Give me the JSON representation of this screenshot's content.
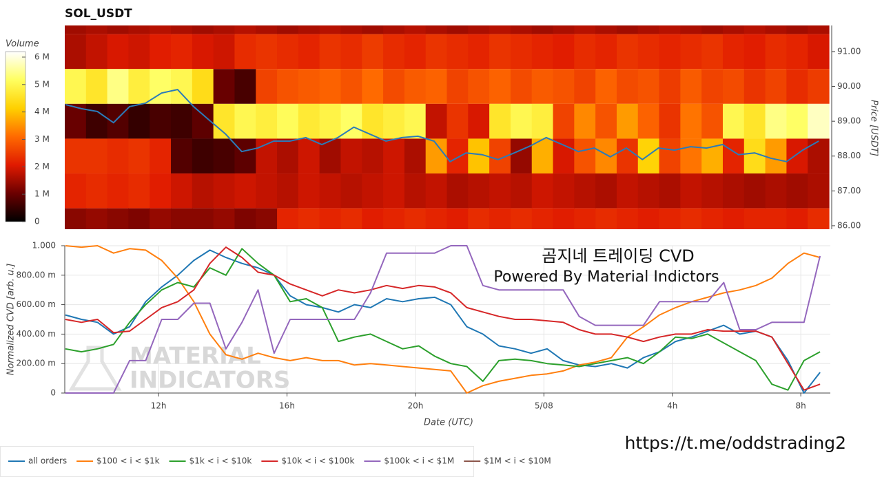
{
  "chart_data": [
    {
      "type": "heatmap",
      "title": "SOL_USDT",
      "xlim": [
        9.08,
        32.92
      ],
      "levels": [
        92,
        91,
        90,
        89,
        88,
        87,
        86
      ],
      "z": [
        [
          1.5,
          1.6,
          1.5,
          1.6,
          1.7,
          1.6,
          1.5,
          1.6,
          1.7,
          1.6,
          1.5,
          1.6,
          1.7,
          1.6,
          1.5,
          1.6,
          1.7,
          1.6,
          1.5,
          1.6,
          1.7,
          1.6,
          1.5,
          1.6,
          1.7,
          1.6,
          1.5,
          1.6,
          1.7,
          1.6,
          1.5,
          1.6,
          1.7,
          1.6,
          1.5,
          1.6
        ],
        [
          1.6,
          1.8,
          2.0,
          1.9,
          2.1,
          2.2,
          2.0,
          1.9,
          2.3,
          2.4,
          2.3,
          2.2,
          2.4,
          2.3,
          2.5,
          2.3,
          2.2,
          2.4,
          2.3,
          2.2,
          2.4,
          2.3,
          2.2,
          2.1,
          2.3,
          2.2,
          2.4,
          2.3,
          2.2,
          2.3,
          2.4,
          2.2,
          2.1,
          2.3,
          2.2,
          2.0
        ],
        [
          5.0,
          4.6,
          5.4,
          4.8,
          5.2,
          5.0,
          4.4,
          1.0,
          0.7,
          2.6,
          2.8,
          2.9,
          3.0,
          2.8,
          3.1,
          2.7,
          2.9,
          3.0,
          2.6,
          2.8,
          3.0,
          2.7,
          2.9,
          2.8,
          2.6,
          3.0,
          2.7,
          2.8,
          2.5,
          2.9,
          2.6,
          2.7,
          2.4,
          2.6,
          2.3,
          2.5
        ],
        [
          1.0,
          0.6,
          0.8,
          0.5,
          0.7,
          0.6,
          0.9,
          4.6,
          5.0,
          4.8,
          5.1,
          4.7,
          4.9,
          5.2,
          4.6,
          4.8,
          5.0,
          1.8,
          2.4,
          2.0,
          4.6,
          5.0,
          4.8,
          2.6,
          3.4,
          2.8,
          3.6,
          3.0,
          2.4,
          3.2,
          2.8,
          5.0,
          4.6,
          5.4,
          5.2,
          5.8
        ],
        [
          2.4,
          2.4,
          2.3,
          2.4,
          2.2,
          0.8,
          0.6,
          0.7,
          0.9,
          1.8,
          1.6,
          1.9,
          1.5,
          1.8,
          1.7,
          1.9,
          1.6,
          3.6,
          2.2,
          4.0,
          2.6,
          1.4,
          3.8,
          2.0,
          2.8,
          3.4,
          2.4,
          4.2,
          2.6,
          3.2,
          3.8,
          2.2,
          4.4,
          3.6,
          2.0,
          1.6
        ],
        [
          2.2,
          2.3,
          2.2,
          2.3,
          2.1,
          1.9,
          1.7,
          1.8,
          1.9,
          1.8,
          1.7,
          1.9,
          1.8,
          1.7,
          1.8,
          1.9,
          1.7,
          1.8,
          1.6,
          1.7,
          1.8,
          1.7,
          1.9,
          1.8,
          1.7,
          1.6,
          1.8,
          1.7,
          1.6,
          1.8,
          1.7,
          1.6,
          1.5,
          1.6,
          1.5,
          1.6
        ],
        [
          1.3,
          1.4,
          1.3,
          1.2,
          1.4,
          1.3,
          1.3,
          1.4,
          1.2,
          1.3,
          2.2,
          2.3,
          2.2,
          2.3,
          2.1,
          2.2,
          2.3,
          2.2,
          2.1,
          2.3,
          2.2,
          2.3,
          2.2,
          2.1,
          2.2,
          2.3,
          2.2,
          2.1,
          2.2,
          2.3,
          2.2,
          2.1,
          2.2,
          2.2,
          2.1,
          2.3
        ]
      ],
      "colorscale": [
        "#000000",
        "#6b0000",
        "#e01a00",
        "#ff6a00",
        "#ffd000",
        "#ffff60",
        "#ffffff"
      ],
      "colorbar": {
        "title": "Volume",
        "lim": [
          0,
          6.2
        ],
        "ticks": [
          0,
          {
            "value": 1,
            "label": "1 M"
          },
          {
            "value": 2,
            "label": "2 M"
          },
          {
            "value": 3,
            "label": "3 M"
          },
          {
            "value": 4,
            "label": "4 M"
          },
          {
            "value": 5,
            "label": "5 M"
          },
          {
            "value": 6,
            "label": "6 M"
          }
        ]
      },
      "ylabel": "Price [USDT]",
      "ylim": [
        85.9,
        91.75
      ],
      "yticks": [
        {
          "value": 86,
          "label": "86.00"
        },
        {
          "value": 87,
          "label": "87.00"
        },
        {
          "value": 88,
          "label": "88.00"
        },
        {
          "value": 89,
          "label": "89.00"
        },
        {
          "value": 90,
          "label": "90.00"
        },
        {
          "value": 91,
          "label": "91.00"
        }
      ],
      "x": [
        9.1,
        9.6,
        10.1,
        10.6,
        11.1,
        11.6,
        12.1,
        12.6,
        13.1,
        13.6,
        14.1,
        14.6,
        15.1,
        15.6,
        16.1,
        16.6,
        17.1,
        17.6,
        18.1,
        18.6,
        19.1,
        19.6,
        20.1,
        20.6,
        21.1,
        21.6,
        22.1,
        22.6,
        23.1,
        23.6,
        24.1,
        24.6,
        25.1,
        25.6,
        26.1,
        26.6,
        27.1,
        27.6,
        28.1,
        28.6,
        29.1,
        29.6,
        30.1,
        30.6,
        31.1,
        31.6,
        32.1,
        32.6
      ],
      "series": [
        {
          "color": "#2b7bb9",
          "values": [
            89.48,
            89.36,
            89.28,
            88.96,
            89.42,
            89.52,
            89.81,
            89.91,
            89.42,
            89.02,
            88.63,
            88.13,
            88.23,
            88.43,
            88.43,
            88.53,
            88.33,
            88.53,
            88.83,
            88.63,
            88.43,
            88.53,
            88.57,
            88.43,
            87.84,
            88.09,
            88.04,
            87.9,
            88.09,
            88.29,
            88.53,
            88.33,
            88.13,
            88.23,
            87.98,
            88.23,
            87.9,
            88.23,
            88.17,
            88.27,
            88.23,
            88.33,
            88.04,
            88.09,
            87.94,
            87.84,
            88.17,
            88.43
          ]
        }
      ]
    },
    {
      "type": "line",
      "xlabel": "Date (UTC)",
      "ylabel": "Normalized CVD [arb. u.]",
      "xlim": [
        9.08,
        32.92
      ],
      "xticks": [
        {
          "value": 12,
          "label": "12h"
        },
        {
          "value": 16,
          "label": "16h"
        },
        {
          "value": 20,
          "label": "20h"
        },
        {
          "value": 24,
          "label": "5/08"
        },
        {
          "value": 28,
          "label": "4h"
        },
        {
          "value": 32,
          "label": "8h"
        }
      ],
      "ylim": [
        0,
        1
      ],
      "yticks": [
        0,
        {
          "value": 0.2,
          "label": "200.00 m"
        },
        {
          "value": 0.4,
          "label": "400.00 m"
        },
        {
          "value": 0.6,
          "label": "600.00 m"
        },
        {
          "value": 0.8,
          "label": "800.00 m"
        },
        {
          "value": 1,
          "label": "1.000"
        }
      ],
      "grid": true,
      "x": [
        9.1,
        9.6,
        10.1,
        10.6,
        11.1,
        11.6,
        12.1,
        12.6,
        13.1,
        13.6,
        14.1,
        14.6,
        15.1,
        15.6,
        16.1,
        16.6,
        17.1,
        17.6,
        18.1,
        18.6,
        19.1,
        19.6,
        20.1,
        20.6,
        21.1,
        21.6,
        22.1,
        22.6,
        23.1,
        23.6,
        24.1,
        24.6,
        25.1,
        25.6,
        26.1,
        26.6,
        27.1,
        27.6,
        28.1,
        28.6,
        29.1,
        29.6,
        30.1,
        30.6,
        31.1,
        31.6,
        32.1,
        32.6
      ],
      "series": [
        {
          "name": "all orders",
          "color": "#1f77b4",
          "values": [
            0.53,
            0.5,
            0.48,
            0.4,
            0.45,
            0.62,
            0.72,
            0.8,
            0.9,
            0.97,
            0.92,
            0.88,
            0.85,
            0.8,
            0.66,
            0.6,
            0.58,
            0.55,
            0.6,
            0.58,
            0.64,
            0.62,
            0.64,
            0.65,
            0.6,
            0.45,
            0.4,
            0.32,
            0.3,
            0.27,
            0.3,
            0.22,
            0.19,
            0.18,
            0.2,
            0.17,
            0.24,
            0.28,
            0.35,
            0.38,
            0.42,
            0.46,
            0.4,
            0.42,
            0.38,
            0.22,
            0.0,
            0.14
          ]
        },
        {
          "name": "$100 < i < $1k",
          "color": "#ff7f0e",
          "values": [
            1.0,
            0.99,
            1.0,
            0.95,
            0.98,
            0.97,
            0.9,
            0.78,
            0.62,
            0.4,
            0.26,
            0.23,
            0.27,
            0.24,
            0.22,
            0.24,
            0.22,
            0.22,
            0.19,
            0.2,
            0.19,
            0.18,
            0.17,
            0.16,
            0.15,
            0.0,
            0.05,
            0.08,
            0.1,
            0.12,
            0.13,
            0.15,
            0.19,
            0.21,
            0.24,
            0.38,
            0.45,
            0.53,
            0.58,
            0.62,
            0.65,
            0.68,
            0.7,
            0.73,
            0.78,
            0.88,
            0.95,
            0.92
          ]
        },
        {
          "name": "$1k < i < $10k",
          "color": "#2ca02c",
          "values": [
            0.3,
            0.28,
            0.3,
            0.33,
            0.48,
            0.6,
            0.7,
            0.75,
            0.72,
            0.85,
            0.8,
            0.98,
            0.88,
            0.8,
            0.62,
            0.64,
            0.58,
            0.35,
            0.38,
            0.4,
            0.35,
            0.3,
            0.32,
            0.25,
            0.2,
            0.18,
            0.08,
            0.22,
            0.23,
            0.22,
            0.2,
            0.19,
            0.18,
            0.2,
            0.22,
            0.24,
            0.2,
            0.28,
            0.38,
            0.37,
            0.4,
            0.34,
            0.28,
            0.22,
            0.06,
            0.02,
            0.22,
            0.28
          ]
        },
        {
          "name": "$10k < i < $100k",
          "color": "#d62728",
          "values": [
            0.5,
            0.48,
            0.5,
            0.41,
            0.42,
            0.5,
            0.58,
            0.62,
            0.7,
            0.88,
            0.99,
            0.92,
            0.82,
            0.8,
            0.74,
            0.7,
            0.66,
            0.7,
            0.68,
            0.7,
            0.73,
            0.71,
            0.73,
            0.72,
            0.68,
            0.58,
            0.55,
            0.52,
            0.5,
            0.5,
            0.49,
            0.48,
            0.43,
            0.4,
            0.4,
            0.38,
            0.35,
            0.38,
            0.4,
            0.4,
            0.43,
            0.42,
            0.42,
            0.42,
            0.38,
            0.2,
            0.02,
            0.06
          ]
        },
        {
          "name": "$100k < i < $1M",
          "color": "#9467bd",
          "values": [
            0.0,
            0.0,
            0.0,
            0.0,
            0.22,
            0.22,
            0.5,
            0.5,
            0.61,
            0.61,
            0.3,
            0.48,
            0.7,
            0.27,
            0.5,
            0.5,
            0.5,
            0.5,
            0.5,
            0.68,
            0.95,
            0.95,
            0.95,
            0.95,
            1.0,
            1.0,
            0.73,
            0.7,
            0.7,
            0.7,
            0.7,
            0.7,
            0.52,
            0.46,
            0.46,
            0.46,
            0.46,
            0.62,
            0.62,
            0.62,
            0.62,
            0.75,
            0.43,
            0.43,
            0.48,
            0.48,
            0.48,
            0.93
          ]
        },
        {
          "name": "$1M < i < $10M",
          "color": "#8c564b",
          "values": [
            null,
            null,
            null,
            null,
            null,
            null,
            null,
            null,
            null,
            null,
            null,
            null,
            null,
            null,
            null,
            null,
            null,
            null,
            null,
            null,
            null,
            null,
            null,
            null,
            null,
            null,
            null,
            null,
            null,
            null,
            null,
            null,
            null,
            null,
            null,
            null,
            null,
            null,
            null,
            null,
            null,
            null,
            null,
            null,
            null,
            null,
            null,
            null
          ]
        }
      ],
      "annotations": [
        "곰지네 트레이딩 CVD",
        "Powered By Material Indictors"
      ],
      "watermark": [
        "MATERIAL",
        "INDICATORS"
      ]
    }
  ],
  "footer": {
    "link": "https://t.me/oddstrading2"
  }
}
